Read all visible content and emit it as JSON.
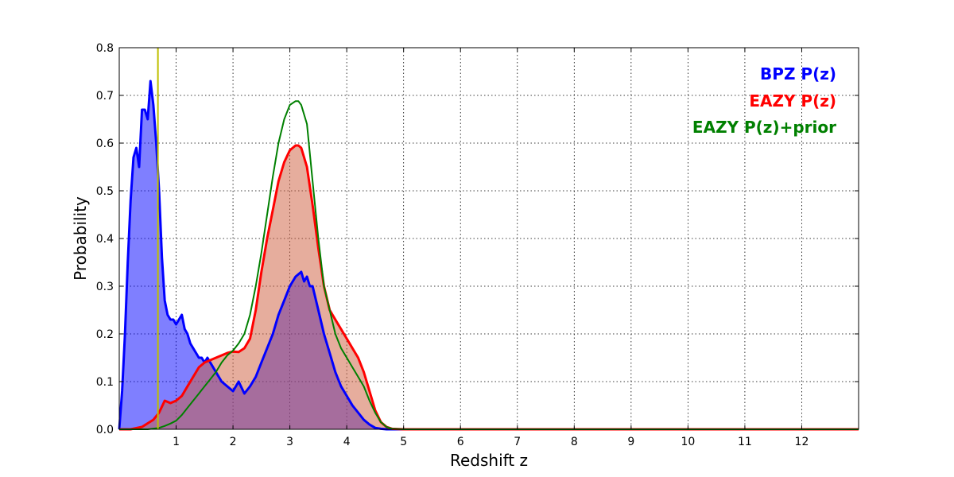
{
  "chart_data": {
    "type": "area",
    "xlabel": "Redshift z",
    "ylabel": "Probability",
    "xlim": [
      0,
      13
    ],
    "ylim": [
      0,
      0.8
    ],
    "xticks": [
      1,
      2,
      3,
      4,
      5,
      6,
      7,
      8,
      9,
      10,
      11,
      12
    ],
    "yticks": [
      0.0,
      0.1,
      0.2,
      0.3,
      0.4,
      0.5,
      0.6,
      0.7,
      0.8
    ],
    "tick_labels_x": [
      "1",
      "2",
      "3",
      "4",
      "5",
      "6",
      "7",
      "8",
      "9",
      "10",
      "11",
      "12"
    ],
    "tick_labels_y": [
      "0.0",
      "0.1",
      "0.2",
      "0.3",
      "0.4",
      "0.5",
      "0.6",
      "0.7",
      "0.8"
    ],
    "grid": true,
    "legend_position": "top-right",
    "reference_line": {
      "x": 0.68,
      "color": "#bfbf00"
    },
    "series": [
      {
        "name": "BPZ P(z)",
        "color": "#0000ff",
        "fill": "#0000ff",
        "fill_opacity": 0.5,
        "filled": true,
        "x": [
          0.0,
          0.05,
          0.1,
          0.15,
          0.2,
          0.25,
          0.3,
          0.35,
          0.4,
          0.45,
          0.5,
          0.55,
          0.6,
          0.65,
          0.7,
          0.75,
          0.8,
          0.85,
          0.9,
          0.95,
          1.0,
          1.05,
          1.1,
          1.15,
          1.2,
          1.25,
          1.3,
          1.35,
          1.4,
          1.45,
          1.5,
          1.55,
          1.6,
          1.7,
          1.8,
          1.9,
          2.0,
          2.1,
          2.2,
          2.3,
          2.4,
          2.5,
          2.6,
          2.7,
          2.8,
          2.9,
          3.0,
          3.1,
          3.2,
          3.25,
          3.3,
          3.35,
          3.4,
          3.5,
          3.6,
          3.7,
          3.8,
          3.9,
          4.0,
          4.1,
          4.2,
          4.3,
          4.4,
          4.5,
          4.6,
          4.7,
          4.8,
          5.0,
          6.0,
          8.0,
          10.0,
          12.0,
          13.0
        ],
        "y": [
          0.0,
          0.08,
          0.2,
          0.35,
          0.48,
          0.57,
          0.59,
          0.55,
          0.67,
          0.67,
          0.65,
          0.73,
          0.68,
          0.6,
          0.5,
          0.36,
          0.27,
          0.24,
          0.23,
          0.23,
          0.22,
          0.23,
          0.24,
          0.21,
          0.2,
          0.18,
          0.17,
          0.16,
          0.15,
          0.15,
          0.14,
          0.15,
          0.14,
          0.12,
          0.1,
          0.09,
          0.08,
          0.1,
          0.075,
          0.09,
          0.11,
          0.14,
          0.17,
          0.2,
          0.24,
          0.27,
          0.3,
          0.32,
          0.33,
          0.31,
          0.32,
          0.3,
          0.3,
          0.25,
          0.2,
          0.16,
          0.12,
          0.09,
          0.07,
          0.05,
          0.035,
          0.02,
          0.01,
          0.003,
          0.001,
          0.0,
          0.0,
          0.0,
          0.0,
          0.0,
          0.0,
          0.0,
          0.0
        ]
      },
      {
        "name": "EAZY P(z)",
        "color": "#ff0000",
        "fill": "#cd5c3c",
        "fill_opacity": 0.5,
        "filled": true,
        "x": [
          0.0,
          0.2,
          0.4,
          0.6,
          0.7,
          0.8,
          0.9,
          1.0,
          1.1,
          1.2,
          1.3,
          1.4,
          1.5,
          1.6,
          1.7,
          1.8,
          1.9,
          2.0,
          2.1,
          2.2,
          2.3,
          2.4,
          2.5,
          2.6,
          2.7,
          2.8,
          2.9,
          3.0,
          3.1,
          3.15,
          3.2,
          3.3,
          3.4,
          3.5,
          3.6,
          3.7,
          3.8,
          3.9,
          4.0,
          4.1,
          4.2,
          4.3,
          4.4,
          4.5,
          4.6,
          4.7,
          4.8,
          5.0,
          13.0
        ],
        "y": [
          0.0,
          0.0,
          0.005,
          0.02,
          0.035,
          0.06,
          0.055,
          0.06,
          0.07,
          0.09,
          0.11,
          0.13,
          0.14,
          0.145,
          0.15,
          0.155,
          0.16,
          0.163,
          0.162,
          0.17,
          0.19,
          0.25,
          0.33,
          0.4,
          0.46,
          0.52,
          0.56,
          0.585,
          0.595,
          0.595,
          0.59,
          0.55,
          0.47,
          0.38,
          0.3,
          0.25,
          0.23,
          0.21,
          0.19,
          0.17,
          0.15,
          0.12,
          0.08,
          0.04,
          0.015,
          0.005,
          0.001,
          0.0,
          0.0
        ]
      },
      {
        "name": "EAZY P(z)+prior",
        "color": "#008000",
        "filled": false,
        "x": [
          0.0,
          0.5,
          0.7,
          0.8,
          0.9,
          1.0,
          1.1,
          1.2,
          1.3,
          1.4,
          1.5,
          1.6,
          1.7,
          1.8,
          1.9,
          2.0,
          2.1,
          2.2,
          2.3,
          2.4,
          2.5,
          2.6,
          2.7,
          2.8,
          2.9,
          3.0,
          3.1,
          3.15,
          3.2,
          3.3,
          3.4,
          3.5,
          3.6,
          3.7,
          3.8,
          3.9,
          4.0,
          4.1,
          4.2,
          4.3,
          4.4,
          4.5,
          4.6,
          4.7,
          4.8,
          5.0,
          13.0
        ],
        "y": [
          0.0,
          0.0,
          0.003,
          0.007,
          0.012,
          0.018,
          0.03,
          0.045,
          0.06,
          0.075,
          0.09,
          0.105,
          0.12,
          0.14,
          0.155,
          0.165,
          0.18,
          0.2,
          0.24,
          0.3,
          0.37,
          0.45,
          0.53,
          0.6,
          0.65,
          0.68,
          0.688,
          0.688,
          0.68,
          0.64,
          0.52,
          0.4,
          0.3,
          0.25,
          0.2,
          0.17,
          0.15,
          0.13,
          0.11,
          0.09,
          0.06,
          0.035,
          0.015,
          0.005,
          0.001,
          0.0,
          0.0
        ]
      }
    ]
  }
}
